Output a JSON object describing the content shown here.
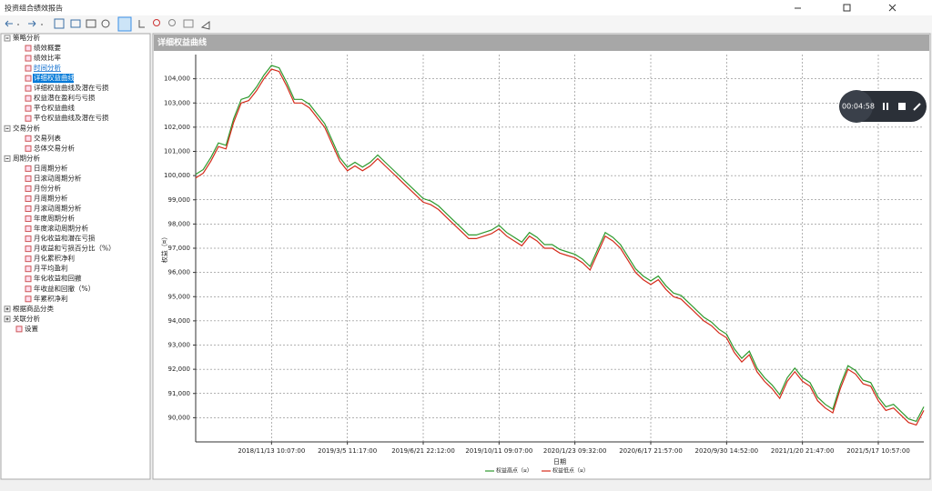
{
  "window": {
    "title": "投资组合绩效报告"
  },
  "tree": [
    {
      "label": "策略分析",
      "level": 0,
      "expander": "minus"
    },
    {
      "label": "绩效概要",
      "level": 1
    },
    {
      "label": "绩效比率",
      "level": 1
    },
    {
      "label": "时间分析",
      "level": 1,
      "state": "hover"
    },
    {
      "label": "详细权益曲线",
      "level": 1,
      "state": "selected"
    },
    {
      "label": "详细权益曲线及潜在亏损",
      "level": 1
    },
    {
      "label": "权益潜在盈利与亏损",
      "level": 1
    },
    {
      "label": "平仓权益曲线",
      "level": 1
    },
    {
      "label": "平仓权益曲线及潜在亏损",
      "level": 1
    },
    {
      "label": "交易分析",
      "level": 0,
      "expander": "minus"
    },
    {
      "label": "交易列表",
      "level": 1
    },
    {
      "label": "总体交易分析",
      "level": 1
    },
    {
      "label": "周期分析",
      "level": 0,
      "expander": "minus"
    },
    {
      "label": "日周期分析",
      "level": 1
    },
    {
      "label": "日滚动周期分析",
      "level": 1
    },
    {
      "label": "月份分析",
      "level": 1
    },
    {
      "label": "月周期分析",
      "level": 1
    },
    {
      "label": "月滚动周期分析",
      "level": 1
    },
    {
      "label": "年度周期分析",
      "level": 1
    },
    {
      "label": "年度滚动周期分析",
      "level": 1
    },
    {
      "label": "月化收益和潜在亏损",
      "level": 1
    },
    {
      "label": "月收益和亏损百分比（%）",
      "level": 1
    },
    {
      "label": "月化累积净利",
      "level": 1
    },
    {
      "label": "月平均盈利",
      "level": 1
    },
    {
      "label": "年化收益和回撤",
      "level": 1
    },
    {
      "label": "年收益和回撤（%）",
      "level": 1
    },
    {
      "label": "年累积净利",
      "level": 1
    },
    {
      "label": "根据商品分类",
      "level": 0,
      "expander": "plus"
    },
    {
      "label": "关联分析",
      "level": 0,
      "expander": "plus"
    },
    {
      "label": "设置",
      "level": 0
    }
  ],
  "panel": {
    "title": "详细权益曲线"
  },
  "recorder": {
    "time": "00:04:58"
  },
  "chart_data": {
    "type": "line",
    "xlabel": "日期",
    "ylabel": "权益（¤）",
    "categories": [
      null,
      null,
      null,
      null,
      null,
      null,
      null,
      null,
      null,
      null,
      "2018/11/13 10:07:00",
      null,
      null,
      null,
      null,
      null,
      null,
      null,
      null,
      null,
      "2019/3/5 11:17:00",
      null,
      null,
      null,
      null,
      null,
      null,
      null,
      null,
      null,
      "2019/6/21 22:12:00",
      null,
      null,
      null,
      null,
      null,
      null,
      null,
      null,
      null,
      "2019/10/11 09:07:00",
      null,
      null,
      null,
      null,
      null,
      null,
      null,
      null,
      null,
      "2020/1/23 09:32:00",
      null,
      null,
      null,
      null,
      null,
      null,
      null,
      null,
      null,
      "2020/6/17 21:57:00",
      null,
      null,
      null,
      null,
      null,
      null,
      null,
      null,
      null,
      "2020/9/30 14:52:00",
      null,
      null,
      null,
      null,
      null,
      null,
      null,
      null,
      null,
      "2021/1/20 21:47:00",
      null,
      null,
      null,
      null,
      null,
      null,
      null,
      null,
      null,
      "2021/5/17 10:57:00",
      null,
      null,
      null,
      null,
      null,
      null
    ],
    "series": [
      {
        "name": "权益高点（¤）",
        "color": "#2e9a2e",
        "values": [
          100050,
          100250,
          100750,
          101350,
          101250,
          102350,
          103150,
          103250,
          103650,
          104150,
          104550,
          104450,
          103850,
          103150,
          103150,
          102950,
          102550,
          102150,
          101450,
          100750,
          100350,
          100550,
          100350,
          100550,
          100850,
          100550,
          100250,
          99950,
          99650,
          99350,
          99050,
          98950,
          98750,
          98450,
          98150,
          97850,
          97550,
          97550,
          97650,
          97750,
          97950,
          97650,
          97450,
          97250,
          97650,
          97450,
          97150,
          97150,
          96950,
          96850,
          96750,
          96550,
          96250,
          96950,
          97650,
          97450,
          97150,
          96650,
          96150,
          95850,
          95650,
          95850,
          95450,
          95150,
          95050,
          94750,
          94450,
          94150,
          93950,
          93650,
          93450,
          92850,
          92450,
          92750,
          92050,
          91650,
          91350,
          90950,
          91650,
          92050,
          91650,
          91450,
          90850,
          90550,
          90350,
          91350,
          92150,
          91950,
          91550,
          91450,
          90850,
          90450,
          90550,
          90250,
          89950,
          89850,
          90450
        ]
      },
      {
        "name": "权益低点（¤）",
        "color": "#d42a1a",
        "values": [
          99900,
          100100,
          100600,
          101200,
          101100,
          102200,
          103000,
          103100,
          103500,
          104000,
          104400,
          104300,
          103700,
          103000,
          103000,
          102800,
          102400,
          102000,
          101300,
          100600,
          100200,
          100400,
          100200,
          100400,
          100700,
          100400,
          100100,
          99800,
          99500,
          99200,
          98900,
          98800,
          98600,
          98300,
          98000,
          97700,
          97400,
          97400,
          97500,
          97600,
          97800,
          97500,
          97300,
          97100,
          97500,
          97300,
          97000,
          97000,
          96800,
          96700,
          96600,
          96400,
          96100,
          96800,
          97500,
          97300,
          97000,
          96500,
          96000,
          95700,
          95500,
          95700,
          95300,
          95000,
          94900,
          94600,
          94300,
          94000,
          93800,
          93500,
          93300,
          92700,
          92300,
          92600,
          91900,
          91500,
          91200,
          90800,
          91500,
          91900,
          91500,
          91300,
          90700,
          90400,
          90200,
          91200,
          92000,
          91800,
          91400,
          91300,
          90700,
          90300,
          90400,
          90100,
          89800,
          89700,
          90300
        ]
      }
    ],
    "ylim": [
      89000,
      105000
    ],
    "yticks": [
      {
        "value": 90000,
        "label": "90,000"
      },
      {
        "value": 91000,
        "label": "91,000"
      },
      {
        "value": 92000,
        "label": "92,000"
      },
      {
        "value": 93000,
        "label": "93,000"
      },
      {
        "value": 94000,
        "label": "94,000"
      },
      {
        "value": 95000,
        "label": "95,000"
      },
      {
        "value": 96000,
        "label": "96,000"
      },
      {
        "value": 97000,
        "label": "97,000"
      },
      {
        "value": 98000,
        "label": "98,000"
      },
      {
        "value": 99000,
        "label": "99,000"
      },
      {
        "value": 100000,
        "label": "100,000"
      },
      {
        "value": 101000,
        "label": "101,000"
      },
      {
        "value": 102000,
        "label": "102,000"
      },
      {
        "value": 103000,
        "label": "103,000"
      },
      {
        "value": 104000,
        "label": "104,000"
      }
    ],
    "grid": true,
    "legend": "bottom"
  }
}
